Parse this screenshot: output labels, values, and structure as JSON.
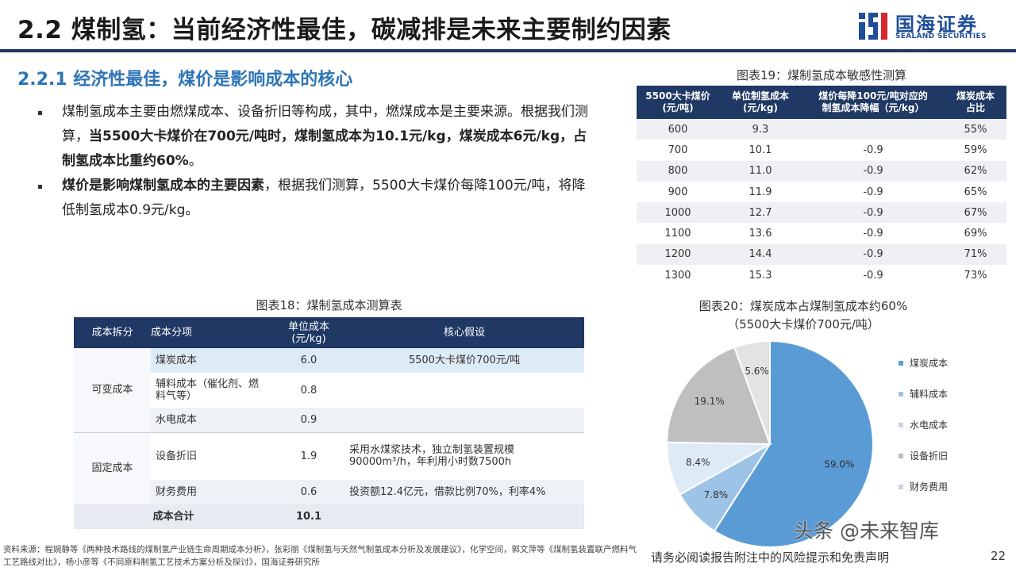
{
  "header": {
    "title": "2.2 煤制氢：当前经济性最佳，碳减排是未来主要制约因素",
    "logo_cn": "国海证券",
    "logo_en": "SEALAND SECURITIES"
  },
  "section": {
    "heading": "2.2.1 经济性最佳，煤价是影响成本的核心",
    "bullets": [
      {
        "parts": [
          {
            "text": "煤制氢成本主要由燃煤成本、设备折旧等构成，其中，燃煤成本是主要来源。根据我们测算，",
            "bold": false
          },
          {
            "text": "当5500大卡煤价在700元/吨时，煤制氢成本为10.1元/kg，煤炭成本6元/kg，占制氢成本比重约60%",
            "bold": true
          },
          {
            "text": "。",
            "bold": false
          }
        ]
      },
      {
        "parts": [
          {
            "text": "煤价是影响煤制氢成本的主要因素",
            "bold": true
          },
          {
            "text": "，根据我们测算，5500大卡煤价每降100元/吨，将降低制氢成本0.9元/kg。",
            "bold": false
          }
        ]
      }
    ]
  },
  "table18": {
    "title": "图表18：煤制氢成本测算表",
    "headers": [
      "成本拆分",
      "成本分项",
      "单位成本\n(元/kg)",
      "核心假设"
    ],
    "groups": {
      "variable": "可变成本",
      "fixed": "固定成本"
    },
    "rows": [
      {
        "item": "煤炭成本",
        "cost": "6.0",
        "assumption": "5500大卡煤价700元/吨"
      },
      {
        "item": "辅料成本（催化剂、燃料气等）",
        "cost": "0.8",
        "assumption": ""
      },
      {
        "item": "水电成本",
        "cost": "0.9",
        "assumption": ""
      },
      {
        "item": "设备折旧",
        "cost": "1.9",
        "assumption": "采用水煤浆技术，独立制氢装置规模90000m³/h，年利用小时数7500h"
      },
      {
        "item": "财务费用",
        "cost": "0.6",
        "assumption": "投资额12.4亿元，借款比例70%，利率4%"
      }
    ],
    "total_label": "成本合计",
    "total_value": "10.1"
  },
  "table19": {
    "title": "图表19：煤制氢成本敏感性测算",
    "headers": [
      "5500大卡煤价\n(元/吨)",
      "单位制氢成本\n(元/kg)",
      "煤价每降100元/吨对应的\n制氢成本降幅（元/kg）",
      "煤炭成本\n占比"
    ],
    "rows": [
      [
        "600",
        "9.3",
        "",
        "55%"
      ],
      [
        "700",
        "10.1",
        "-0.9",
        "59%"
      ],
      [
        "800",
        "11.0",
        "-0.9",
        "62%"
      ],
      [
        "900",
        "11.9",
        "-0.9",
        "65%"
      ],
      [
        "1000",
        "12.7",
        "-0.9",
        "67%"
      ],
      [
        "1100",
        "13.6",
        "-0.9",
        "69%"
      ],
      [
        "1200",
        "14.4",
        "-0.9",
        "71%"
      ],
      [
        "1300",
        "15.3",
        "-0.9",
        "73%"
      ]
    ]
  },
  "chart_data": {
    "type": "pie",
    "title": "图表20：煤炭成本占煤制氢成本约60%",
    "subtitle": "（5500大卡煤价700元/吨）",
    "legend_position": "right",
    "slices": [
      {
        "name": "煤炭成本",
        "value": 59.0,
        "label": "59.0%",
        "color": "#5b9bd5"
      },
      {
        "name": "辅料成本",
        "value": 7.8,
        "label": "7.8%",
        "color": "#9dc3e6"
      },
      {
        "name": "水电成本",
        "value": 8.4,
        "label": "8.4%",
        "color": "#deebf7"
      },
      {
        "name": "设备折旧",
        "value": 19.1,
        "label": "19.1%",
        "color": "#bfbfbf"
      },
      {
        "name": "财务费用",
        "value": 5.6,
        "label": "5.6%",
        "color": "#e3e3e3"
      }
    ]
  },
  "footer": {
    "source": "资料来源：程婉静等《两种技术路线的煤制氢产业链生命周期成本分析》，张彩丽《煤制氢与天然气制氢成本分析及发展建议》，化学空间，郭文萍等《煤制氢装置联产燃料气工艺路线对比》，杨小彦等《不同原料制氢工艺技术方案分析及探讨》，国海证券研究所",
    "disclaimer": "请务必阅读报告附注中的风险提示和免责声明",
    "page": "22",
    "watermark": "头条 @未来智库"
  }
}
